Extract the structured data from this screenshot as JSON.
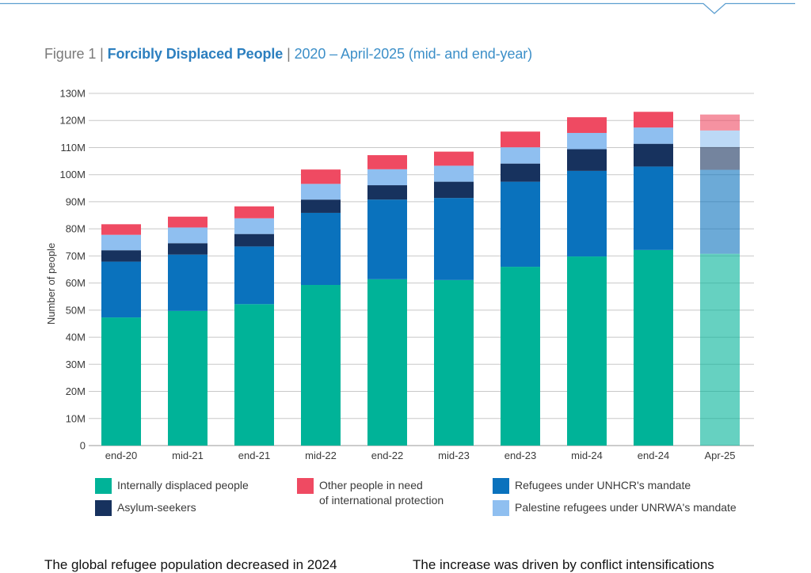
{
  "figure": {
    "number": "Figure 1",
    "separator": " | ",
    "title": "Forcibly Displaced People",
    "subtitle": "2020 – April-2025 (mid- and end-year)"
  },
  "colors": {
    "idp": "#00b398",
    "refugees": "#0a72bd",
    "asylum": "#17325e",
    "palestine": "#8fbff0",
    "other": "#ef4a62",
    "rule": "#5d9fd0"
  },
  "chart_data": {
    "type": "bar",
    "stacked": true,
    "ylabel": "Number of people",
    "ylim": [
      0,
      130
    ],
    "yticks": [
      0,
      10,
      20,
      30,
      40,
      50,
      60,
      70,
      80,
      90,
      100,
      110,
      120,
      130
    ],
    "ytick_labels": [
      "0",
      "10M",
      "20M",
      "30M",
      "40M",
      "50M",
      "60M",
      "70M",
      "80M",
      "90M",
      "100M",
      "110M",
      "120M",
      "130M"
    ],
    "unit": "millions",
    "grid": true,
    "categories": [
      "end-20",
      "mid-21",
      "end-21",
      "mid-22",
      "end-22",
      "mid-23",
      "end-23",
      "mid-24",
      "end-24",
      "Apr-25"
    ],
    "series": [
      {
        "name": "Internally displaced people",
        "key": "idp",
        "values": [
          47.3,
          49.7,
          52.2,
          59.3,
          61.4,
          61.1,
          66.0,
          69.8,
          72.2,
          70.8
        ]
      },
      {
        "name": "Refugees under UNHCR's mandate",
        "key": "refugees",
        "values": [
          20.6,
          20.8,
          21.3,
          26.6,
          29.4,
          30.3,
          31.4,
          31.6,
          30.8,
          31.0
        ]
      },
      {
        "name": "Asylum-seekers",
        "key": "asylum",
        "values": [
          4.2,
          4.2,
          4.6,
          4.9,
          5.3,
          6.0,
          6.7,
          8.0,
          8.4,
          8.4
        ]
      },
      {
        "name": "Palestine refugees under UNRWA's mandate",
        "key": "palestine",
        "values": [
          5.7,
          5.8,
          5.8,
          5.8,
          5.9,
          5.9,
          6.0,
          6.0,
          6.0,
          6.1
        ]
      },
      {
        "name": "Other people in need of international protection",
        "key": "other",
        "values": [
          3.9,
          4.0,
          4.4,
          5.3,
          5.2,
          5.2,
          5.8,
          5.8,
          5.8,
          5.9
        ]
      }
    ],
    "faded_categories": [
      "Apr-25"
    ],
    "legend": [
      {
        "key": "idp",
        "label": "Internally displaced people"
      },
      {
        "key": "other",
        "label": "Other people in need\nof international protection"
      },
      {
        "key": "refugees",
        "label": "Refugees under UNHCR's mandate"
      },
      {
        "key": "asylum",
        "label": "Asylum-seekers"
      },
      {
        "key": "palestine",
        "label": "Palestine refugees under UNRWA's mandate"
      }
    ]
  },
  "body": {
    "left": "The global refugee population decreased in 2024",
    "right": "The increase was driven by conflict intensifications"
  }
}
